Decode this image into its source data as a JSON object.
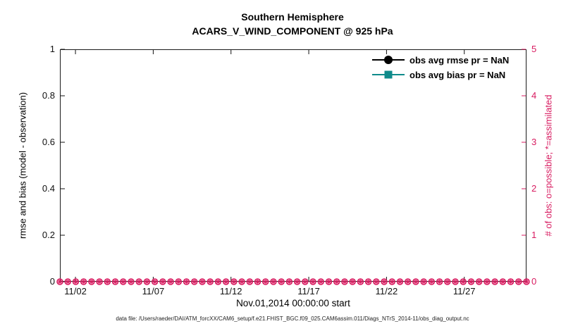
{
  "title": {
    "line1": "Southern Hemisphere",
    "line2": "ACARS_V_WIND_COMPONENT @ 925 hPa"
  },
  "left_axis": {
    "label": "rmse and bias (model - observation)",
    "tick_values": [
      0,
      0.2,
      0.4,
      0.6,
      0.8,
      1
    ],
    "tick_labels": [
      "0",
      "0.2",
      "0.4",
      "0.6",
      "0.8",
      "1"
    ],
    "color": "#000000"
  },
  "right_axis": {
    "label": "# of obs: o=possible; *=assimilated",
    "tick_values": [
      0,
      1,
      2,
      3,
      4,
      5
    ],
    "tick_labels": [
      "0",
      "1",
      "2",
      "3",
      "4",
      "5"
    ],
    "color": "#d81b60"
  },
  "x_axis": {
    "label": "Nov.01,2014 00:00:00 start",
    "tick_labels": [
      "11/02",
      "11/07",
      "11/12",
      "11/17",
      "11/22",
      "11/27"
    ],
    "tick_days": [
      2,
      7,
      12,
      17,
      22,
      27
    ],
    "range_days": [
      1,
      31
    ]
  },
  "legend": [
    {
      "label": "obs avg rmse pr = NaN",
      "color": "#000000",
      "marker": "circle"
    },
    {
      "label": "obs avg bias pr = NaN",
      "color": "#0f8b8b",
      "marker": "square"
    }
  ],
  "footer": "data file: /Users/raeder/DAI/ATM_forcXX/CAM6_setup/f.e21.FHIST_BGC.f09_025.CAM6assim.011/Diags_NTrS_2014-11/obs_diag_output.nc",
  "chart_data": {
    "type": "line",
    "title": "Southern Hemisphere",
    "subtitle": "ACARS_V_WIND_COMPONENT @ 925 hPa",
    "xlabel": "Nov.01,2014 00:00:00 start",
    "ylabel_left": "rmse and bias (model - observation)",
    "ylabel_right": "# of obs: o=possible; *=assimilated",
    "x_tick_labels": [
      "11/02",
      "11/07",
      "11/12",
      "11/17",
      "11/22",
      "11/27"
    ],
    "x_range_days_of_november": [
      1,
      31
    ],
    "ylim_left": [
      0,
      1
    ],
    "yticks_left": [
      0,
      0.2,
      0.4,
      0.6,
      0.8,
      1
    ],
    "ylim_right": [
      0,
      5
    ],
    "yticks_right": [
      0,
      1,
      2,
      3,
      4,
      5
    ],
    "grid": false,
    "legend_position": "upper-right-inside",
    "series": [
      {
        "name": "obs avg rmse pr = NaN",
        "axis": "left",
        "color": "#000000",
        "marker": "filled-circle",
        "values": "NaN (nothing plotted)"
      },
      {
        "name": "obs avg bias pr = NaN",
        "axis": "left",
        "color": "#0f8b8b",
        "marker": "filled-square",
        "values": "NaN (nothing plotted)"
      },
      {
        "name": "# obs possible (o)",
        "axis": "right",
        "color": "#d81b60",
        "marker": "open-circle",
        "n_points": 60,
        "constant_value": 0
      },
      {
        "name": "# obs assimilated (*)",
        "axis": "right",
        "color": "#d81b60",
        "marker": "asterisk",
        "n_points": 60,
        "constant_value": 0
      }
    ]
  }
}
